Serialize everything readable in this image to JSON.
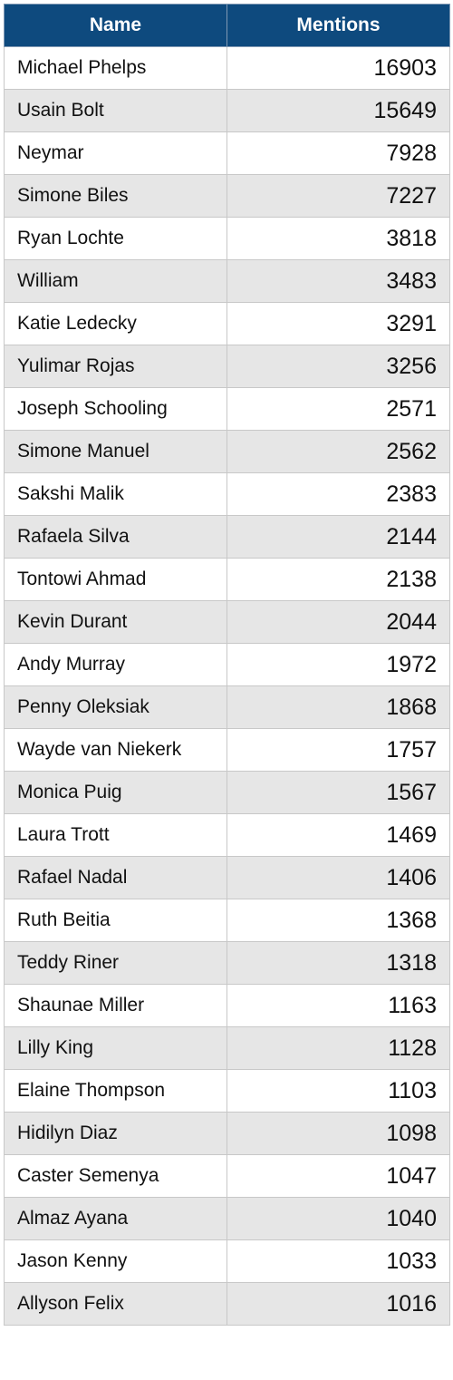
{
  "colors": {
    "header_bg": "#0e4a7e",
    "row_alt_bg": "#e6e6e6",
    "row_bg": "#ffffff",
    "border": "#c8c8c8"
  },
  "chart_data": {
    "type": "table",
    "columns": [
      "Name",
      "Mentions"
    ],
    "rows": [
      [
        "Michael Phelps",
        "16903"
      ],
      [
        "Usain Bolt",
        "15649"
      ],
      [
        "Neymar",
        "7928"
      ],
      [
        "Simone Biles",
        "7227"
      ],
      [
        "Ryan Lochte",
        "3818"
      ],
      [
        "William",
        "3483"
      ],
      [
        "Katie Ledecky",
        "3291"
      ],
      [
        "Yulimar Rojas",
        "3256"
      ],
      [
        "Joseph Schooling",
        "2571"
      ],
      [
        "Simone Manuel",
        "2562"
      ],
      [
        "Sakshi Malik",
        "2383"
      ],
      [
        "Rafaela Silva",
        "2144"
      ],
      [
        "Tontowi Ahmad",
        "2138"
      ],
      [
        "Kevin Durant",
        "2044"
      ],
      [
        "Andy Murray",
        "1972"
      ],
      [
        "Penny Oleksiak",
        "1868"
      ],
      [
        "Wayde van Niekerk",
        "1757"
      ],
      [
        "Monica Puig",
        "1567"
      ],
      [
        "Laura Trott",
        "1469"
      ],
      [
        "Rafael Nadal",
        "1406"
      ],
      [
        "Ruth Beitia",
        "1368"
      ],
      [
        "Teddy Riner",
        "1318"
      ],
      [
        "Shaunae Miller",
        "1163"
      ],
      [
        "Lilly King",
        "1128"
      ],
      [
        "Elaine Thompson",
        "1103"
      ],
      [
        "Hidilyn Diaz",
        "1098"
      ],
      [
        "Caster Semenya",
        "1047"
      ],
      [
        "Almaz Ayana",
        "1040"
      ],
      [
        "Jason Kenny",
        "1033"
      ],
      [
        "Allyson Felix",
        "1016"
      ]
    ]
  }
}
